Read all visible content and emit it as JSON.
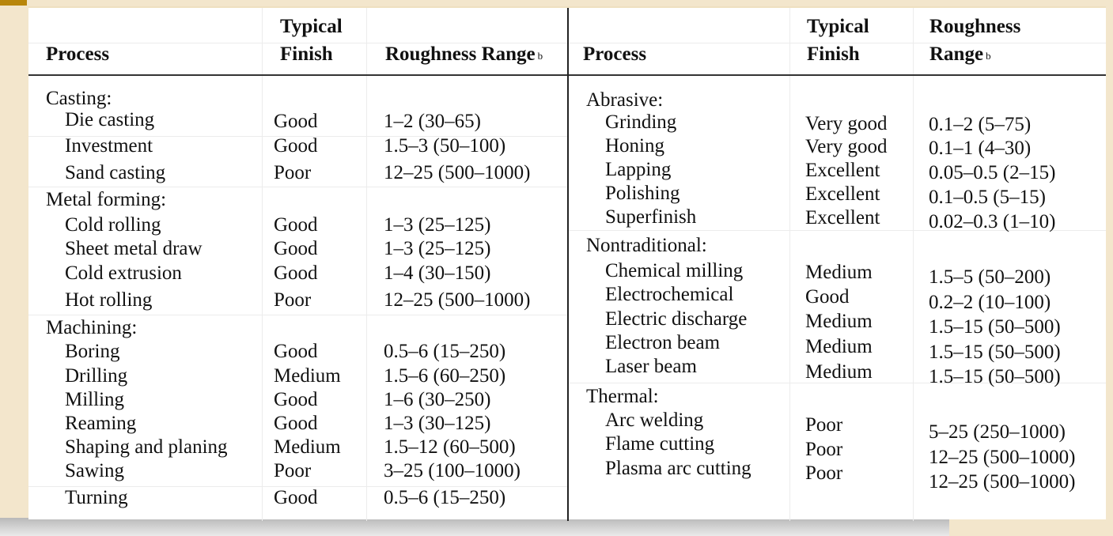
{
  "headers": {
    "left": {
      "process": "Process",
      "finish_line1": "Typical",
      "finish_line2": "Finish",
      "range": "Roughness Range",
      "range_note": "b"
    },
    "right": {
      "process": "Process",
      "finish_line1": "Typical",
      "finish_line2": "Finish",
      "range_line1": "Roughness",
      "range_line2": "Range",
      "range_note": "b"
    }
  },
  "left_groups": [
    {
      "name": "Casting:",
      "items": [
        {
          "process": "Die casting",
          "finish": "Good",
          "range": "1–2 (30–65)"
        },
        {
          "process": "Investment",
          "finish": "Good",
          "range": "1.5–3 (50–100)"
        },
        {
          "process": "Sand casting",
          "finish": "Poor",
          "range": "12–25 (500–1000)"
        }
      ]
    },
    {
      "name": "Metal forming:",
      "items": [
        {
          "process": "Cold rolling",
          "finish": "Good",
          "range": "1–3 (25–125)"
        },
        {
          "process": "Sheet metal draw",
          "finish": "Good",
          "range": "1–3 (25–125)"
        },
        {
          "process": "Cold extrusion",
          "finish": "Good",
          "range": "1–4 (30–150)"
        },
        {
          "process": "Hot rolling",
          "finish": "Poor",
          "range": "12–25 (500–1000)"
        }
      ]
    },
    {
      "name": "Machining:",
      "items": [
        {
          "process": "Boring",
          "finish": "Good",
          "range": "0.5–6 (15–250)"
        },
        {
          "process": "Drilling",
          "finish": "Medium",
          "range": "1.5–6 (60–250)"
        },
        {
          "process": "Milling",
          "finish": "Good",
          "range": "1–6 (30–250)"
        },
        {
          "process": "Reaming",
          "finish": "Good",
          "range": "1–3 (30–125)"
        },
        {
          "process": "Shaping and planing",
          "finish": "Medium",
          "range": "1.5–12 (60–500)"
        },
        {
          "process": "Sawing",
          "finish": "Poor",
          "range": "3–25 (100–1000)"
        },
        {
          "process": "Turning",
          "finish": "Good",
          "range": "0.5–6 (15–250)"
        }
      ]
    }
  ],
  "right_groups": [
    {
      "name": "Abrasive:",
      "items": [
        {
          "process": "Grinding",
          "finish": "Very good",
          "range": "0.1–2 (5–75)"
        },
        {
          "process": "Honing",
          "finish": "Very good",
          "range": "0.1–1 (4–30)"
        },
        {
          "process": "Lapping",
          "finish": "Excellent",
          "range": "0.05–0.5 (2–15)"
        },
        {
          "process": "Polishing",
          "finish": "Excellent",
          "range": "0.1–0.5 (5–15)"
        },
        {
          "process": "Superfinish",
          "finish": "Excellent",
          "range": "0.02–0.3 (1–10)"
        }
      ]
    },
    {
      "name": "Nontraditional:",
      "items": [
        {
          "process": "Chemical milling",
          "finish": "Medium",
          "range": "1.5–5 (50–200)"
        },
        {
          "process": "Electrochemical",
          "finish": "Good",
          "range": "0.2–2 (10–100)"
        },
        {
          "process": "Electric discharge",
          "finish": "Medium",
          "range": "1.5–15 (50–500)"
        },
        {
          "process": "Electron beam",
          "finish": "Medium",
          "range": "1.5–15 (50–500)"
        },
        {
          "process": "Laser beam",
          "finish": "Medium",
          "range": "1.5–15 (50–500)"
        }
      ]
    },
    {
      "name": "Thermal:",
      "items": [
        {
          "process": "Arc welding",
          "finish": "Poor",
          "range": "5–25 (250–1000)"
        },
        {
          "process": "Flame cutting",
          "finish": "Poor",
          "range": "12–25 (500–1000)"
        },
        {
          "process": "Plasma arc cutting",
          "finish": "Poor",
          "range": "12–25 (500–1000)"
        }
      ]
    }
  ]
}
